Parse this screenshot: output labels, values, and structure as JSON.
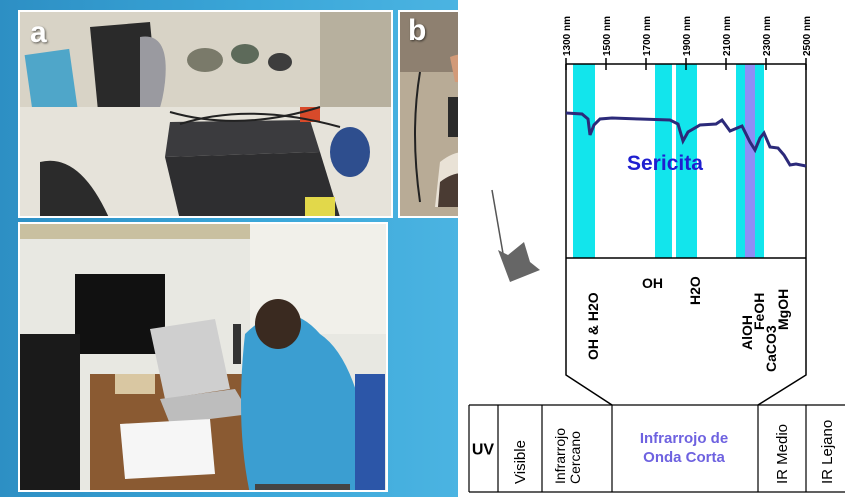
{
  "photos": {
    "a_label": "a",
    "b_label": "b"
  },
  "spectrum": {
    "wavelengths": [
      "1300 nm",
      "1500 nm",
      "1700 nm",
      "1900 nm",
      "2100 nm",
      "2300 nm",
      "2500 nm"
    ],
    "curve_label": "Sericita",
    "bands": [
      {
        "label": "OH & H2O",
        "start_nm": 1335,
        "end_nm": 1445,
        "color": "#12e5ec"
      },
      {
        "label": "OH",
        "start_nm": 1745,
        "end_nm": 1830,
        "color": "#12e5ec"
      },
      {
        "label": "H2O",
        "start_nm": 1850,
        "end_nm": 1955,
        "color": "#12e5ec"
      },
      {
        "label": "AlOH",
        "start_nm": 2150,
        "end_nm": 2195,
        "color": "#12e5ec"
      },
      {
        "label": "FeOH",
        "start_nm": 2195,
        "end_nm": 2245,
        "color": "#8f8ef5"
      },
      {
        "label": "CaCO3",
        "start_nm": 2245,
        "end_nm": 2265,
        "color": "#12e5ec"
      },
      {
        "label": "MgOH",
        "start_nm": 2265,
        "end_nm": 2290,
        "color": "#12e5ec"
      }
    ],
    "curve_color": "#2c2a7a",
    "label_color": "#1f1fd0"
  },
  "em_spectrum_table": {
    "cells": [
      "UV",
      "Visible",
      "Infrarrojo Cercano",
      "Infrarrojo de Onda Corta",
      "IR Medio",
      "IR Lejano"
    ],
    "highlight_color": "#6e62e0"
  }
}
